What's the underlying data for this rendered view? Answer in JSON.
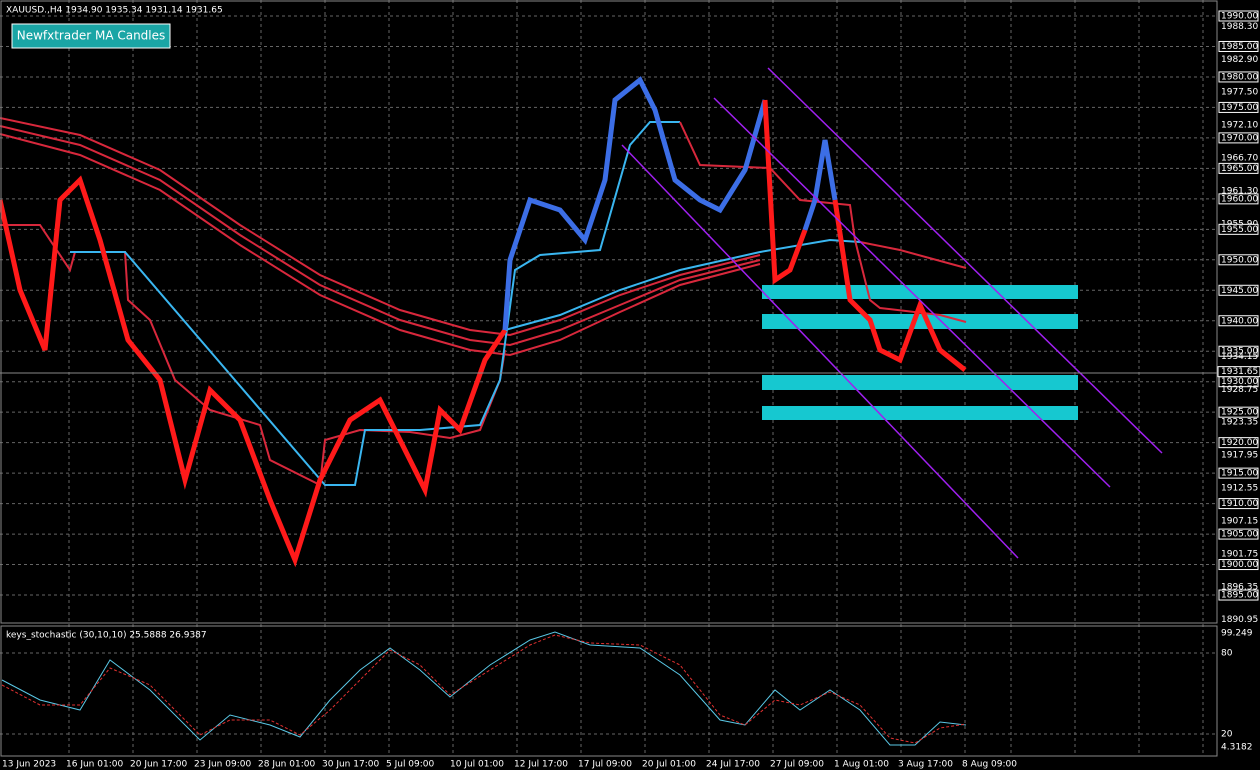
{
  "header": {
    "symbol_info": "XAUUSD.,H4  1934.90 1935.34 1931.14 1931.65",
    "button": "Newfxtrader MA Candles"
  },
  "price_axis": {
    "labels": [
      "1990.00",
      "1988.30",
      "1985.00",
      "1982.90",
      "1980.00",
      "1977.50",
      "1975.00",
      "1972.10",
      "1970.00",
      "1966.70",
      "1965.00",
      "1961.30",
      "1960.00",
      "1955.90",
      "1955.00",
      "1950.00",
      "1945.00",
      "1940.00",
      "1935.00",
      "1934.15",
      "1930.00",
      "1928.75",
      "1925.00",
      "1923.35",
      "1920.00",
      "1917.95",
      "1915.00",
      "1912.55",
      "1910.00",
      "1907.15",
      "1905.00",
      "1901.75",
      "1900.00",
      "1896.35",
      "1895.00",
      "1890.95"
    ],
    "current": "1931.65"
  },
  "indicator": {
    "title": "keys_stochastic (30,10,10) 25.5888 26.9387",
    "labels": [
      "99.249",
      "80",
      "20",
      "4.3182"
    ]
  },
  "time_axis": {
    "labels": [
      "13 Jun 2023",
      "16 Jun 01:00",
      "20 Jun 17:00",
      "23 Jun 09:00",
      "28 Jun 01:00",
      "30 Jun 17:00",
      "5 Jul 09:00",
      "10 Jul 01:00",
      "12 Jul 17:00",
      "17 Jul 09:00",
      "20 Jul 01:00",
      "24 Jul 17:00",
      "27 Jul 09:00",
      "1 Aug 01:00",
      "3 Aug 17:00",
      "8 Aug 09:00"
    ]
  }
}
